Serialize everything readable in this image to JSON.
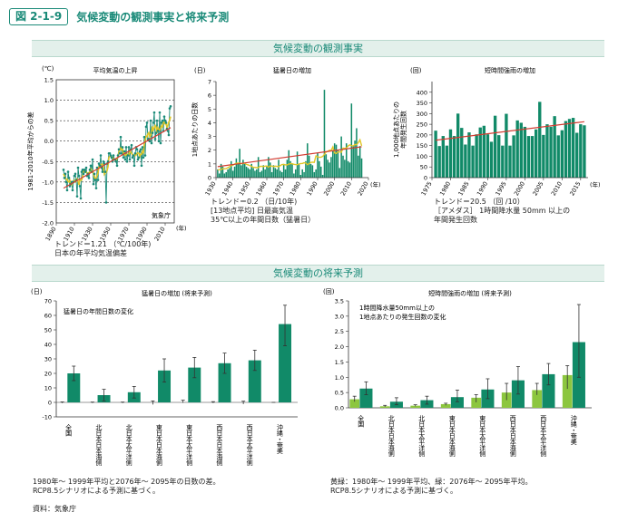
{
  "figure": {
    "badge": "図 2-1-9",
    "title": "気候変動の観測事実と将来予測"
  },
  "sections": {
    "observed": "気候変動の観測事実",
    "projected": "気候変動の将来予測"
  },
  "colors": {
    "teal": "#1a8a78",
    "bar_dark": "#118a68",
    "bar_light": "#8cc63f",
    "trend_red": "#d23c32",
    "smooth_yellow": "#e1c728"
  },
  "chart_data": [
    {
      "type": "line",
      "title": "平均気温の上昇",
      "unit": "(℃)",
      "ylabel": "1981-2010年平均からの差",
      "xlabel_unit": "(年)",
      "source_label": "気象庁",
      "xlim": [
        1890,
        2020
      ],
      "ylim": [
        -2.0,
        1.5
      ],
      "x_ticks": [
        1890,
        1910,
        1930,
        1950,
        1970,
        1990,
        2010
      ],
      "y_ticks": [
        -2.0,
        -1.5,
        -1.0,
        -0.5,
        0.0,
        0.5,
        1.0,
        1.5
      ],
      "trend_from": [
        1898,
        -1.15
      ],
      "trend_to": [
        2016,
        0.33
      ],
      "x": [
        1898,
        1899,
        1900,
        1901,
        1902,
        1903,
        1904,
        1905,
        1906,
        1907,
        1908,
        1909,
        1910,
        1911,
        1912,
        1913,
        1914,
        1915,
        1916,
        1917,
        1918,
        1919,
        1920,
        1921,
        1922,
        1923,
        1924,
        1925,
        1926,
        1927,
        1928,
        1929,
        1930,
        1931,
        1932,
        1933,
        1934,
        1935,
        1936,
        1937,
        1938,
        1939,
        1940,
        1941,
        1942,
        1943,
        1944,
        1945,
        1946,
        1947,
        1948,
        1949,
        1950,
        1951,
        1952,
        1953,
        1954,
        1955,
        1956,
        1957,
        1958,
        1959,
        1960,
        1961,
        1962,
        1963,
        1964,
        1965,
        1966,
        1967,
        1968,
        1969,
        1970,
        1971,
        1972,
        1973,
        1974,
        1975,
        1976,
        1977,
        1978,
        1979,
        1980,
        1981,
        1982,
        1983,
        1984,
        1985,
        1986,
        1987,
        1988,
        1989,
        1990,
        1991,
        1992,
        1993,
        1994,
        1995,
        1996,
        1997,
        1998,
        1999,
        2000,
        2001,
        2002,
        2003,
        2004,
        2005,
        2006,
        2007,
        2008,
        2009,
        2010,
        2011,
        2012,
        2013,
        2014,
        2015,
        2016
      ],
      "values": [
        -0.7,
        -0.9,
        -0.8,
        -1.0,
        -1.2,
        -0.75,
        -0.9,
        -1.1,
        -1.05,
        -1.0,
        -1.2,
        -1.0,
        -0.85,
        -0.8,
        -0.95,
        -1.35,
        -0.65,
        -0.85,
        -1.1,
        -1.4,
        -0.75,
        -0.7,
        -0.8,
        -0.7,
        -0.75,
        -0.65,
        -0.85,
        -0.8,
        -0.9,
        -0.7,
        -0.6,
        -0.75,
        -0.45,
        -1.05,
        -0.8,
        -0.95,
        -1.15,
        -0.65,
        -0.95,
        -0.55,
        -0.6,
        -0.35,
        -0.65,
        -0.75,
        -0.5,
        -0.55,
        -0.75,
        -1.5,
        -0.55,
        -0.5,
        -0.3,
        -0.3,
        -0.35,
        -0.4,
        -0.5,
        -0.35,
        -0.45,
        -0.45,
        -0.5,
        -0.6,
        -0.35,
        -0.2,
        -0.3,
        0.1,
        -0.3,
        -0.15,
        -0.4,
        -0.25,
        -0.45,
        -0.15,
        -0.5,
        -0.35,
        -0.15,
        -0.45,
        -0.2,
        -0.1,
        -0.4,
        -0.35,
        -0.6,
        -0.3,
        -0.15,
        -0.2,
        -0.45,
        -0.4,
        -0.25,
        -0.2,
        -0.6,
        -0.15,
        -0.4,
        0.1,
        -0.35,
        0.35,
        0.45,
        0.05,
        0.05,
        0.0,
        0.5,
        -0.05,
        0.2,
        0.45,
        0.7,
        0.05,
        0.2,
        0.5,
        0.25,
        0.0,
        0.7,
        -0.05,
        0.45,
        0.5,
        0.25,
        0.6,
        0.5,
        0.45,
        0.3,
        0.25,
        0.15,
        0.8,
        0.85
      ],
      "annotation": {
        "trend": "トレンド＝1.21 （℃/100年)",
        "desc": "日本の年平均気温偏差"
      }
    },
    {
      "type": "bar",
      "title": "猛暑日の増加",
      "unit": "(日)",
      "ylabel": "1地点あたりの日数",
      "xlabel_unit": "(年)",
      "xlim": [
        1930,
        2020
      ],
      "ylim": [
        0,
        7
      ],
      "x_ticks": [
        1930,
        1940,
        1950,
        1960,
        1970,
        1980,
        1990,
        2000,
        2010,
        2020
      ],
      "y_ticks": [
        0,
        1,
        2,
        3,
        4,
        5,
        6,
        7
      ],
      "trend_from": [
        1931,
        0.8
      ],
      "trend_to": [
        2016,
        2.25
      ],
      "x": [
        1931,
        1932,
        1933,
        1934,
        1935,
        1936,
        1937,
        1938,
        1939,
        1940,
        1941,
        1942,
        1943,
        1944,
        1945,
        1946,
        1947,
        1948,
        1949,
        1950,
        1951,
        1952,
        1953,
        1954,
        1955,
        1956,
        1957,
        1958,
        1959,
        1960,
        1961,
        1962,
        1963,
        1964,
        1965,
        1966,
        1967,
        1968,
        1969,
        1970,
        1971,
        1972,
        1973,
        1974,
        1975,
        1976,
        1977,
        1978,
        1979,
        1980,
        1981,
        1982,
        1983,
        1984,
        1985,
        1986,
        1987,
        1988,
        1989,
        1990,
        1991,
        1992,
        1993,
        1994,
        1995,
        1996,
        1997,
        1998,
        1999,
        2000,
        2001,
        2002,
        2003,
        2004,
        2005,
        2006,
        2007,
        2008,
        2009,
        2010,
        2011,
        2012,
        2013,
        2014,
        2015,
        2016
      ],
      "values": [
        0.6,
        0.3,
        1.0,
        0.8,
        0.3,
        0.4,
        0.6,
        0.7,
        1.2,
        0.5,
        0.8,
        1.4,
        1.0,
        2.1,
        0.9,
        1.3,
        1.0,
        0.8,
        0.7,
        0.6,
        1.0,
        0.7,
        0.5,
        0.6,
        1.5,
        0.4,
        0.5,
        0.9,
        0.6,
        0.8,
        1.5,
        1.1,
        0.4,
        0.9,
        0.7,
        0.6,
        1.3,
        0.5,
        0.4,
        1.0,
        0.6,
        1.3,
        2.0,
        1.2,
        1.0,
        0.3,
        0.6,
        1.9,
        1.0,
        0.2,
        0.6,
        0.4,
        1.2,
        2.5,
        1.6,
        1.0,
        0.9,
        0.4,
        0.6,
        1.8,
        1.2,
        0.8,
        0.2,
        6.4,
        1.7,
        1.3,
        1.1,
        1.5,
        2.0,
        2.5,
        2.4,
        2.0,
        0.7,
        3.0,
        1.6,
        1.3,
        2.5,
        1.2,
        1.1,
        5.4,
        2.3,
        2.7,
        3.6,
        1.6,
        2.3,
        1.4
      ],
      "annotation": {
        "trend": "トレンド＝0.2 （日/10年)",
        "stations": "[13地点平均] 日最高気温",
        "desc": "35℃以上の年間日数（猛暑日）"
      }
    },
    {
      "type": "bar",
      "title": "短時間強雨の増加",
      "unit": "(回)",
      "ylabel": "1,000地点あたりの年間発生回数",
      "xlabel_unit": "(年)",
      "xlim": [
        1975,
        2017
      ],
      "ylim": [
        0,
        450
      ],
      "x_ticks": [
        1975,
        1980,
        1985,
        1990,
        1995,
        2000,
        2005,
        2010,
        2015
      ],
      "y_ticks": [
        0,
        50,
        100,
        150,
        200,
        250,
        300,
        350,
        400
      ],
      "trend_from": [
        1976,
        175
      ],
      "trend_to": [
        2016,
        262
      ],
      "x": [
        1976,
        1977,
        1978,
        1979,
        1980,
        1981,
        1982,
        1983,
        1984,
        1985,
        1986,
        1987,
        1988,
        1989,
        1990,
        1991,
        1992,
        1993,
        1994,
        1995,
        1996,
        1997,
        1998,
        1999,
        2000,
        2001,
        2002,
        2003,
        2004,
        2005,
        2006,
        2007,
        2008,
        2009,
        2010,
        2011,
        2012,
        2013,
        2014,
        2015,
        2016
      ],
      "values": [
        220,
        148,
        195,
        150,
        226,
        195,
        300,
        233,
        155,
        212,
        150,
        203,
        235,
        243,
        203,
        168,
        290,
        199,
        150,
        299,
        150,
        198,
        268,
        257,
        238,
        195,
        195,
        226,
        355,
        200,
        250,
        238,
        288,
        198,
        222,
        265,
        275,
        280,
        210,
        250,
        245
      ],
      "annotation": {
        "trend": "トレンド＝20.5 （回 /10）",
        "desc1": "［アメダス］ 1時間降水量 50mm 以上の",
        "desc2": "年間発生回数"
      }
    },
    {
      "type": "bar",
      "title": "猛暑日の増加 (将来予測)",
      "unit": "(日)",
      "legend": "猛暑日の年間日数の変化",
      "ylim": [
        -10,
        70
      ],
      "y_ticks": [
        -10,
        0,
        10,
        20,
        30,
        40,
        50,
        60,
        70
      ],
      "categories": [
        "全国",
        "北日本日本海側",
        "北日本太平洋側",
        "東日本日本海側",
        "東日本太平洋側",
        "西日本日本海側",
        "西日本太平洋側",
        "沖縄・奄美"
      ],
      "series": [
        {
          "values": [
            0,
            0,
            0,
            0,
            0,
            0,
            0,
            0
          ],
          "err_low": [
            -0.5,
            -0.5,
            -0.5,
            -1.5,
            -0.3,
            -0.5,
            -1.2,
            0
          ],
          "err_high": [
            0.3,
            0.2,
            0.2,
            1.0,
            1.5,
            0.5,
            0.8,
            0
          ]
        },
        {
          "values": [
            20,
            5,
            7,
            22,
            24,
            27,
            29,
            54
          ],
          "err_low": [
            15,
            1,
            3,
            14,
            17,
            20,
            22,
            39
          ],
          "err_high": [
            25,
            9,
            11,
            30,
            31,
            34,
            36,
            67
          ]
        }
      ],
      "notes": [
        "1980年～ 1999年平均と2076年～ 2095年の日数の差。",
        "RCP8.5シナリオによる予測に基づく。"
      ],
      "source": "資料：気象庁"
    },
    {
      "type": "bar",
      "title": "短時間強雨の増加 (将来予測)",
      "unit": "(回)",
      "legend1": "1時間降水量50mm以上の",
      "legend2": "1地点あたりの発生回数の変化",
      "ylim": [
        0,
        3.5
      ],
      "y_ticks": [
        0,
        0.5,
        1,
        1.5,
        2,
        2.5,
        3,
        3.5
      ],
      "categories": [
        "全国",
        "北日本日本海側",
        "北日本太平洋側",
        "東日本日本海側",
        "東日本太平洋側",
        "西日本日本海側",
        "西日本太平洋側",
        "沖縄・奄美"
      ],
      "series": [
        {
          "name": "1980年～ 1999年平均",
          "values": [
            0.28,
            0.05,
            0.07,
            0.12,
            0.33,
            0.5,
            0.58,
            1.07
          ],
          "err_low": [
            0.2,
            0.03,
            0.05,
            0.08,
            0.18,
            0.25,
            0.42,
            0.62
          ],
          "err_high": [
            0.38,
            0.08,
            0.1,
            0.15,
            0.43,
            0.8,
            0.8,
            1.38
          ]
        },
        {
          "name": "2076年～ 2095年平均",
          "values": [
            0.63,
            0.2,
            0.25,
            0.35,
            0.6,
            0.9,
            1.1,
            2.15
          ],
          "err_low": [
            0.43,
            0.1,
            0.12,
            0.2,
            0.3,
            0.45,
            0.75,
            1.0
          ],
          "err_high": [
            0.85,
            0.33,
            0.38,
            0.58,
            0.95,
            1.35,
            1.45,
            3.38
          ]
        }
      ],
      "notes": [
        "黄緑：1980年～ 1999年平均、緑：2076年～ 2095年平均。",
        "RCP8.5シナリオによる予測に基づく。"
      ]
    }
  ]
}
